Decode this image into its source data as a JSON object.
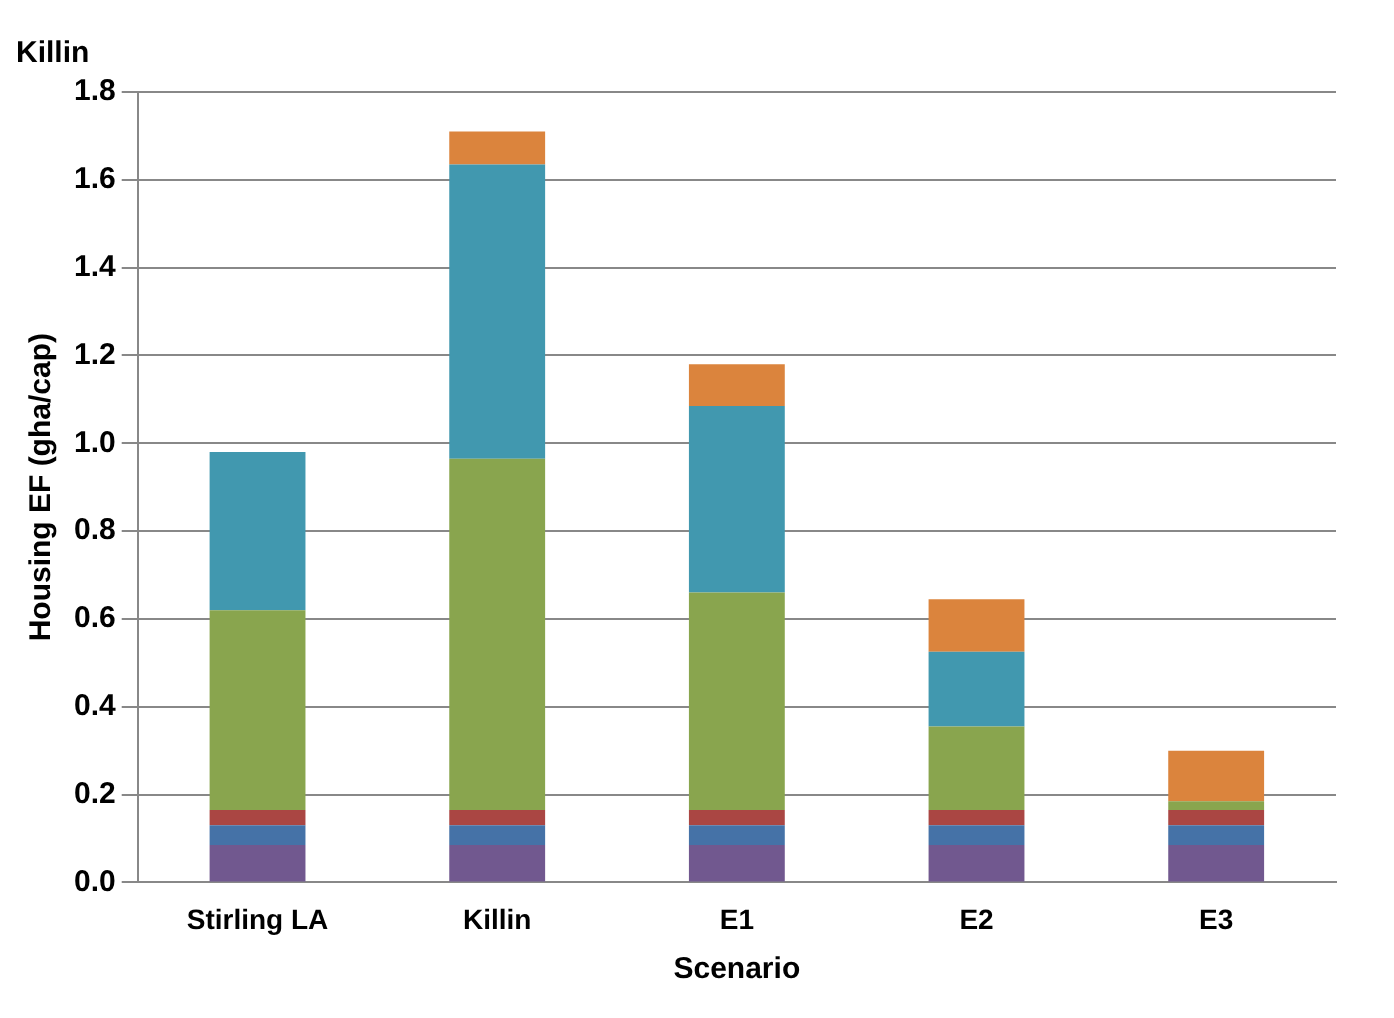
{
  "chart_data": {
    "type": "bar",
    "title": "Killin",
    "xlabel": "Scenario",
    "ylabel": "Housing EF (gha/cap)",
    "categories": [
      "Stirling LA",
      "Killin",
      "E1",
      "E2",
      "E3"
    ],
    "stacked": true,
    "ylim": [
      0,
      1.8
    ],
    "yticks": [
      {
        "value": 0,
        "label": "0.0"
      },
      0.2,
      0.4,
      0.6,
      0.8,
      {
        "value": 1,
        "label": "1.0"
      },
      1.2,
      1.4,
      1.6,
      1.8
    ],
    "grid": "y",
    "legend": false,
    "series": [
      {
        "color": "#71588f",
        "values": [
          0.085,
          0.085,
          0.085,
          0.085,
          0.085
        ]
      },
      {
        "color": "#4572a7",
        "values": [
          0.045,
          0.045,
          0.045,
          0.045,
          0.045
        ]
      },
      {
        "color": "#aa4643",
        "values": [
          0.035,
          0.035,
          0.035,
          0.035,
          0.035
        ]
      },
      {
        "color": "#89a54e",
        "values": [
          0.455,
          0.8,
          0.495,
          0.19,
          0.02
        ]
      },
      {
        "color": "#4198af",
        "values": [
          0.36,
          0.67,
          0.425,
          0.17,
          null
        ]
      },
      {
        "color": "#db843d",
        "values": [
          null,
          0.075,
          0.095,
          0.12,
          0.115
        ]
      }
    ]
  }
}
